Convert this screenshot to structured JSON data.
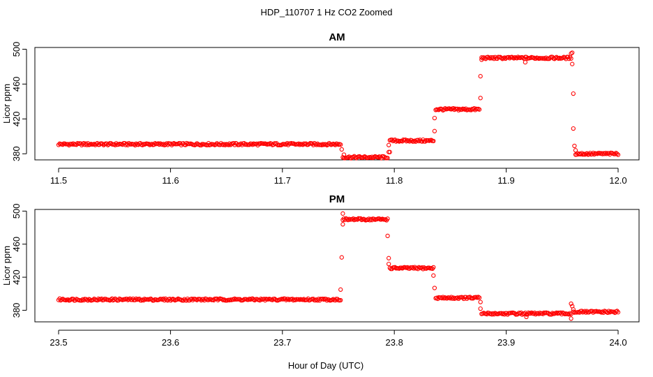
{
  "figure": {
    "title": "HDP_110707  1 Hz CO2 Zoomed",
    "xlabel": "Hour of Day (UTC)"
  },
  "style": {
    "marker_color": "#ff0000",
    "axis_color": "#000000",
    "background": "#ffffff"
  },
  "chart_data": [
    {
      "type": "scatter",
      "title": "AM",
      "xlabel": "",
      "ylabel": "Licor ppm",
      "xlim": [
        11.5,
        12.0
      ],
      "ylim": [
        373,
        502
      ],
      "xticks": [
        "11.5",
        "11.6",
        "11.7",
        "11.8",
        "11.9",
        "12.0"
      ],
      "yticks": [
        "380",
        "420",
        "460",
        "500"
      ],
      "grid": false,
      "segments": [
        {
          "x_start": 11.5,
          "x_end": 11.752,
          "y": 391
        },
        {
          "x_start": 11.754,
          "x_end": 11.794,
          "y": 376
        },
        {
          "x_start": 11.796,
          "x_end": 11.835,
          "y": 395
        },
        {
          "x_start": 11.837,
          "x_end": 11.876,
          "y": 431
        },
        {
          "x_start": 11.878,
          "x_end": 11.958,
          "y": 490
        },
        {
          "x_start": 11.962,
          "x_end": 12.0,
          "y": 380
        }
      ],
      "points": [
        {
          "x": 11.753,
          "y": 385
        },
        {
          "x": 11.755,
          "y": 379
        },
        {
          "x": 11.795,
          "y": 382
        },
        {
          "x": 11.795,
          "y": 390
        },
        {
          "x": 11.796,
          "y": 382
        },
        {
          "x": 11.836,
          "y": 406
        },
        {
          "x": 11.836,
          "y": 421
        },
        {
          "x": 11.877,
          "y": 444
        },
        {
          "x": 11.877,
          "y": 469
        },
        {
          "x": 11.878,
          "y": 488
        },
        {
          "x": 11.917,
          "y": 485
        },
        {
          "x": 11.958,
          "y": 495
        },
        {
          "x": 11.959,
          "y": 496
        },
        {
          "x": 11.959,
          "y": 483
        },
        {
          "x": 11.96,
          "y": 449
        },
        {
          "x": 11.96,
          "y": 409
        },
        {
          "x": 11.961,
          "y": 389
        },
        {
          "x": 11.962,
          "y": 384
        }
      ]
    },
    {
      "type": "scatter",
      "title": "PM",
      "xlabel": "Hour of Day (UTC)",
      "ylabel": "Licor ppm",
      "xlim": [
        23.5,
        24.0
      ],
      "ylim": [
        366,
        502
      ],
      "xticks": [
        "23.5",
        "23.6",
        "23.7",
        "23.8",
        "23.9",
        "24.0"
      ],
      "yticks": [
        "380",
        "420",
        "460",
        "500"
      ],
      "grid": false,
      "segments": [
        {
          "x_start": 23.5,
          "x_end": 23.752,
          "y": 393
        },
        {
          "x_start": 23.754,
          "x_end": 23.794,
          "y": 490
        },
        {
          "x_start": 23.796,
          "x_end": 23.835,
          "y": 431
        },
        {
          "x_start": 23.837,
          "x_end": 23.876,
          "y": 395
        },
        {
          "x_start": 23.878,
          "x_end": 23.958,
          "y": 376
        },
        {
          "x_start": 23.96,
          "x_end": 24.0,
          "y": 378
        }
      ],
      "points": [
        {
          "x": 23.752,
          "y": 405
        },
        {
          "x": 23.753,
          "y": 444
        },
        {
          "x": 23.754,
          "y": 497
        },
        {
          "x": 23.754,
          "y": 484
        },
        {
          "x": 23.794,
          "y": 470
        },
        {
          "x": 23.795,
          "y": 443
        },
        {
          "x": 23.795,
          "y": 436
        },
        {
          "x": 23.835,
          "y": 422
        },
        {
          "x": 23.836,
          "y": 407
        },
        {
          "x": 23.877,
          "y": 390
        },
        {
          "x": 23.877,
          "y": 382
        },
        {
          "x": 23.918,
          "y": 372
        },
        {
          "x": 23.958,
          "y": 388
        },
        {
          "x": 23.958,
          "y": 370
        },
        {
          "x": 23.959,
          "y": 385
        },
        {
          "x": 23.96,
          "y": 381
        }
      ]
    }
  ]
}
